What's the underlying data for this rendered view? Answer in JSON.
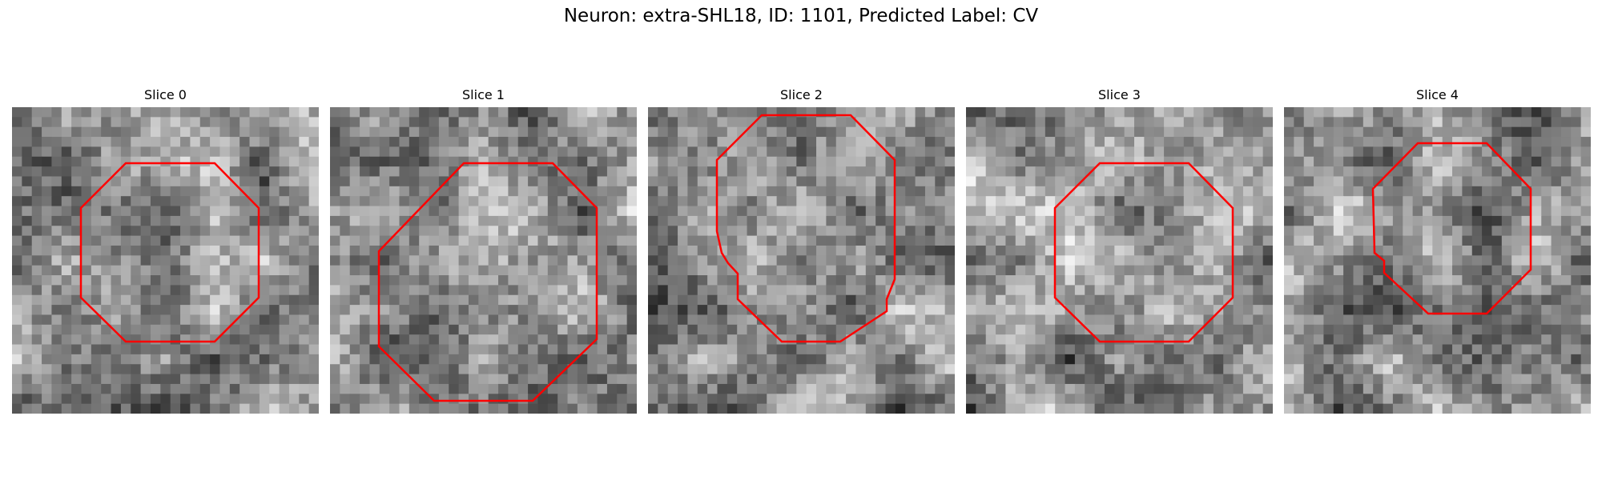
{
  "figure": {
    "title": "Neuron: extra-SHL18, ID: 1101, Predicted Label: CV"
  },
  "colors": {
    "contour": "#ff0000",
    "background": "#ffffff",
    "colormap": "gray"
  },
  "panels": [
    {
      "title": "Slice 0",
      "seed": 11,
      "contour_shape": "octagon"
    },
    {
      "title": "Slice 1",
      "seed": 23,
      "contour_shape": "octagon"
    },
    {
      "title": "Slice 2",
      "seed": 37,
      "contour_shape": "irregular-polygon"
    },
    {
      "title": "Slice 3",
      "seed": 41,
      "contour_shape": "octagon"
    },
    {
      "title": "Slice 4",
      "seed": 59,
      "contour_shape": "irregular-polygon"
    }
  ]
}
